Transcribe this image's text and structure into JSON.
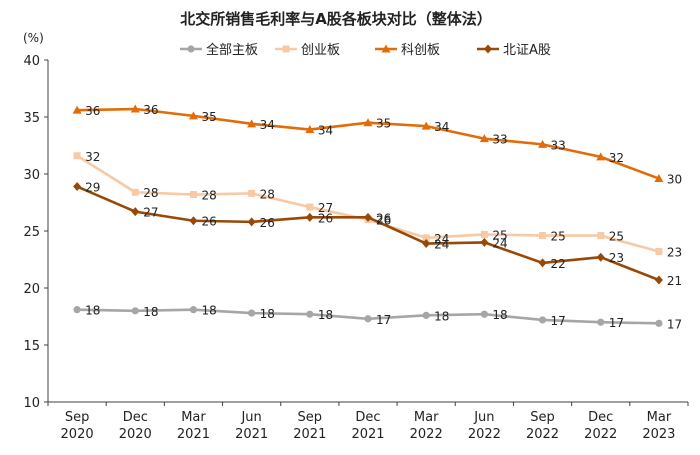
{
  "chart_data": {
    "type": "line",
    "title": "北交所销售毛利率与A股各板块对比（整体法）",
    "ylabel": "(%)",
    "ylim": [
      10,
      40
    ],
    "yticks": [
      10,
      15,
      20,
      25,
      30,
      35,
      40
    ],
    "categories": [
      "Sep\n2020",
      "Dec\n2020",
      "Mar\n2021",
      "Jun\n2021",
      "Sep\n2021",
      "Dec\n2021",
      "Mar\n2022",
      "Jun\n2022",
      "Sep\n2022",
      "Dec\n2022",
      "Mar\n2023"
    ],
    "legend_position": "top",
    "grid": false,
    "series": [
      {
        "name": "全部主板",
        "color": "#a6a6a6",
        "marker": "circle",
        "values": [
          18.1,
          18.0,
          18.1,
          17.8,
          17.7,
          17.3,
          17.6,
          17.7,
          17.2,
          17.0,
          16.9
        ],
        "labels": [
          "18",
          "18",
          "18",
          "18",
          "18",
          "17",
          "18",
          "18",
          "17",
          "17",
          "17"
        ]
      },
      {
        "name": "创业板",
        "color": "#f7c9a4",
        "marker": "square",
        "values": [
          31.6,
          28.4,
          28.2,
          28.3,
          27.1,
          26.0,
          24.4,
          24.7,
          24.6,
          24.6,
          23.2
        ],
        "labels": [
          "32",
          "28",
          "28",
          "28",
          "27",
          "26",
          "24",
          "25",
          "25",
          "25",
          "23"
        ]
      },
      {
        "name": "科创板",
        "color": "#e36c0a",
        "marker": "triangle",
        "values": [
          35.6,
          35.7,
          35.1,
          34.4,
          33.9,
          34.5,
          34.2,
          33.1,
          32.6,
          31.5,
          29.6
        ],
        "labels": [
          "36",
          "36",
          "35",
          "34",
          "34",
          "35",
          "34",
          "33",
          "33",
          "32",
          "30"
        ]
      },
      {
        "name": "北证A股",
        "color": "#984807",
        "marker": "diamond",
        "values": [
          28.9,
          26.7,
          25.9,
          25.8,
          26.2,
          26.2,
          23.9,
          24.0,
          22.2,
          22.7,
          20.7
        ],
        "labels": [
          "29",
          "27",
          "26",
          "26",
          "26",
          "26",
          "24",
          "24",
          "22",
          "23",
          "21"
        ]
      }
    ]
  }
}
